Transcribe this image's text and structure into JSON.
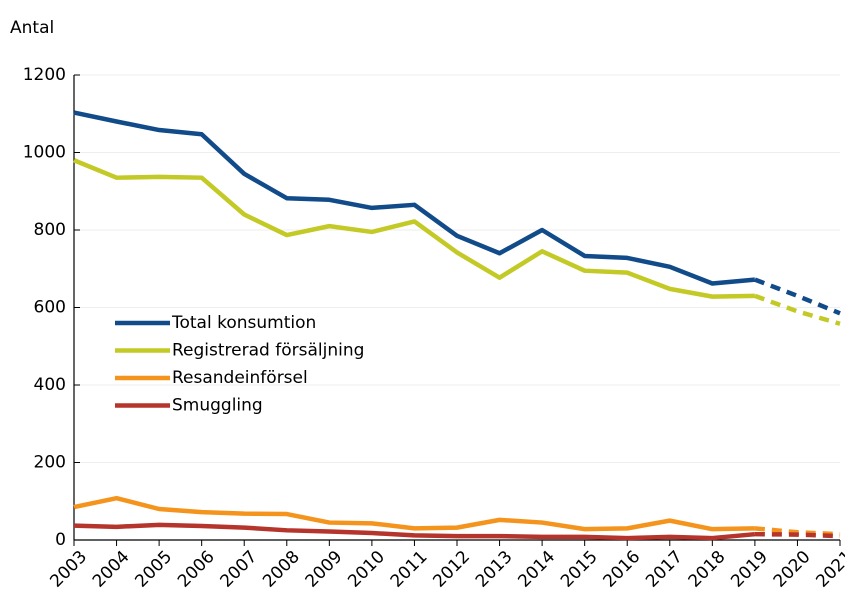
{
  "chart_data": {
    "type": "line",
    "y_label": "Antal",
    "categories": [
      "2003",
      "2004",
      "2005",
      "2006",
      "2007",
      "2008",
      "2009",
      "2010",
      "2011",
      "2012",
      "2013",
      "2014",
      "2015",
      "2016",
      "2017",
      "2018",
      "2019",
      "2020",
      "2021"
    ],
    "dashed_from": "2019",
    "series": [
      {
        "name": "Total konsumtion",
        "color": "#124b8a",
        "values": [
          1103,
          1080,
          1058,
          1047,
          945,
          882,
          878,
          857,
          865,
          785,
          740,
          800,
          733,
          728,
          705,
          662,
          672,
          630,
          585
        ]
      },
      {
        "name": "Registrerad försäljning",
        "color": "#c3c925",
        "values": [
          980,
          935,
          937,
          935,
          840,
          787,
          810,
          795,
          822,
          742,
          677,
          745,
          695,
          690,
          648,
          628,
          630,
          590,
          558
        ]
      },
      {
        "name": "Resandeinförsel",
        "color": "#f5941d",
        "values": [
          85,
          108,
          80,
          72,
          68,
          67,
          45,
          43,
          30,
          32,
          52,
          45,
          28,
          30,
          50,
          28,
          30,
          20,
          15
        ]
      },
      {
        "name": "Smuggling",
        "color": "#b5342b",
        "values": [
          37,
          34,
          39,
          36,
          32,
          25,
          22,
          18,
          12,
          10,
          10,
          8,
          8,
          5,
          8,
          5,
          15,
          14,
          10
        ]
      }
    ],
    "ylim": [
      0,
      1200
    ],
    "yticks": [
      0,
      200,
      400,
      600,
      800,
      1000,
      1200
    ],
    "grid": true
  }
}
